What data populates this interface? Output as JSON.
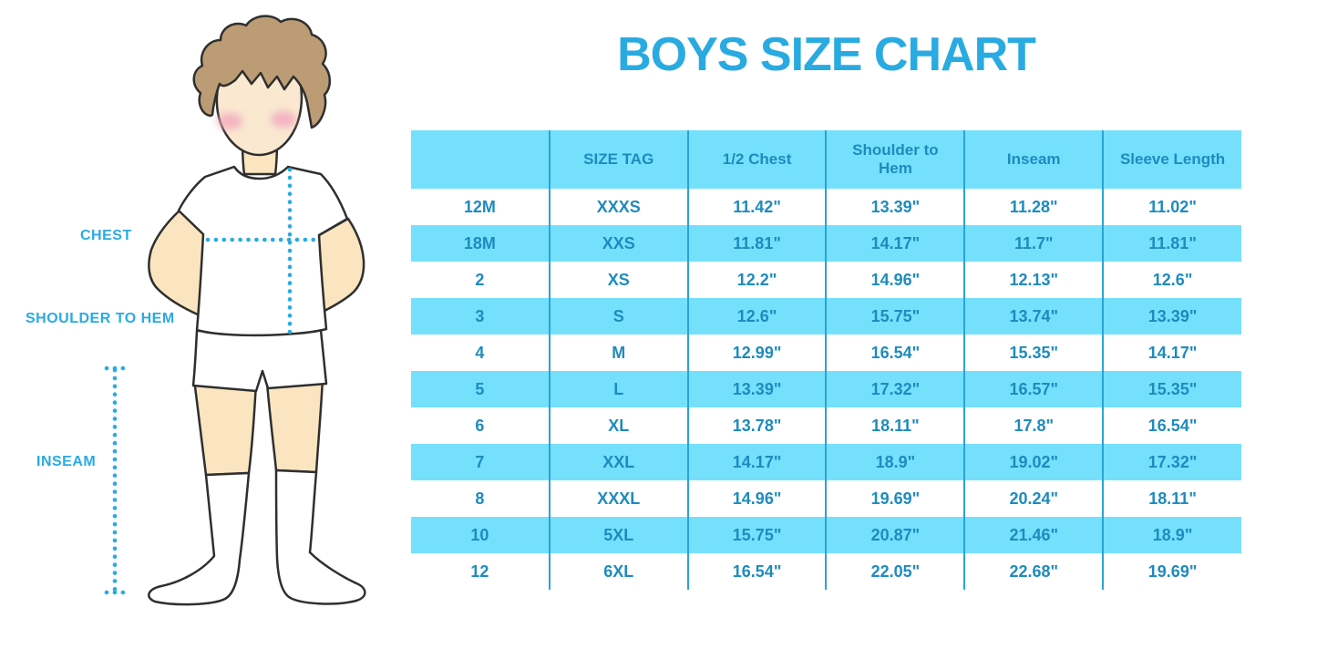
{
  "title": "BOYS SIZE CHART",
  "figure": {
    "labels": {
      "chest": "CHEST",
      "shoulder_to_hem": "SHOULDER TO HEM",
      "inseam": "INSEAM"
    }
  },
  "chart_data": {
    "type": "table",
    "title": "BOYS SIZE CHART",
    "columns": [
      "",
      "SIZE TAG",
      "1/2 Chest",
      "Shoulder to Hem",
      "Inseam",
      "Sleeve Length"
    ],
    "rows": [
      [
        "12M",
        "XXXS",
        "11.42\"",
        "13.39\"",
        "11.28\"",
        "11.02\""
      ],
      [
        "18M",
        "XXS",
        "11.81\"",
        "14.17\"",
        "11.7\"",
        "11.81\""
      ],
      [
        "2",
        "XS",
        "12.2\"",
        "14.96\"",
        "12.13\"",
        "12.6\""
      ],
      [
        "3",
        "S",
        "12.6\"",
        "15.75\"",
        "13.74\"",
        "13.39\""
      ],
      [
        "4",
        "M",
        "12.99\"",
        "16.54\"",
        "15.35\"",
        "14.17\""
      ],
      [
        "5",
        "L",
        "13.39\"",
        "17.32\"",
        "16.57\"",
        "15.35\""
      ],
      [
        "6",
        "XL",
        "13.78\"",
        "18.11\"",
        "17.8\"",
        "16.54\""
      ],
      [
        "7",
        "XXL",
        "14.17\"",
        "18.9\"",
        "19.02\"",
        "17.32\""
      ],
      [
        "8",
        "XXXL",
        "14.96\"",
        "19.69\"",
        "20.24\"",
        "18.11\""
      ],
      [
        "10",
        "5XL",
        "15.75\"",
        "20.87\"",
        "21.46\"",
        "18.9\""
      ],
      [
        "12",
        "6XL",
        "16.54\"",
        "22.05\"",
        "22.68\"",
        "19.69\""
      ]
    ],
    "layout": {
      "row_striping": "white / cyan alternating, first data row white",
      "grid": "vertical dividers only between columns"
    }
  },
  "colors": {
    "accent_blue": "#29ABE2",
    "table_text": "#1E8BBE",
    "row_cyan": "#74E0FC",
    "divider_blue": "#2AA3D6",
    "skin": "#FBE5C0",
    "face": "#FAE8D0",
    "hair": "#BC9C74",
    "blush": "#F2A7BE",
    "outline": "#2F2F2F"
  }
}
